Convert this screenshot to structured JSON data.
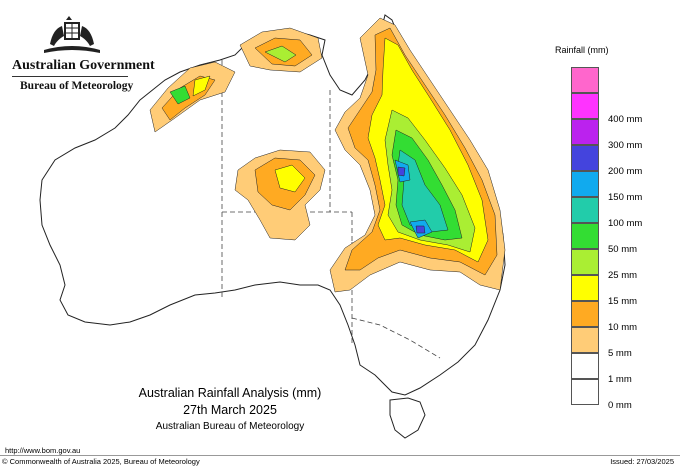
{
  "branding": {
    "government": "Australian Government",
    "agency": "Bureau of Meteorology"
  },
  "map": {
    "title": "Australian Rainfall Analysis (mm)",
    "date": "27th March 2025",
    "source": "Australian Bureau of Meteorology"
  },
  "legend": {
    "title": "Rainfall (mm)",
    "items": [
      {
        "label": "",
        "color": "#ff66cc"
      },
      {
        "label": "400 mm",
        "color": "#ff33ff"
      },
      {
        "label": "300 mm",
        "color": "#bb22ee"
      },
      {
        "label": "200 mm",
        "color": "#4444dd"
      },
      {
        "label": "150 mm",
        "color": "#11aaee"
      },
      {
        "label": "100 mm",
        "color": "#22ccaa"
      },
      {
        "label": "50 mm",
        "color": "#33dd33"
      },
      {
        "label": "25 mm",
        "color": "#aaee33"
      },
      {
        "label": "15 mm",
        "color": "#ffff00"
      },
      {
        "label": "10 mm",
        "color": "#ffaa22"
      },
      {
        "label": "5 mm",
        "color": "#ffcc77"
      },
      {
        "label": "1 mm",
        "color": "#ffffff"
      },
      {
        "label": "0 mm",
        "color": "#ffffff"
      }
    ]
  },
  "footer": {
    "url": "http://www.bom.gov.au",
    "copyright": "© Commonwealth of Australia 2025, Bureau of Meteorology",
    "issued": "Issued: 27/03/2025"
  }
}
